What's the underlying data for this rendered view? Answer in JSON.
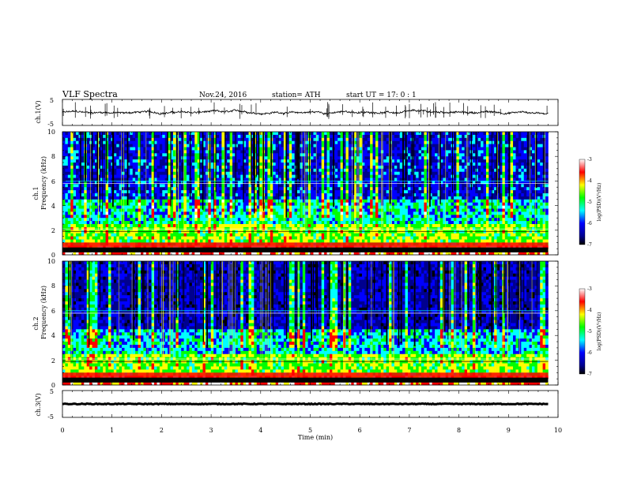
{
  "header": {
    "title": "VLF  Spectra",
    "date": "Nov.24, 2016",
    "station": "station= ATH",
    "start": "start  UT  =   17: 0   : 1"
  },
  "chart_data": [
    {
      "type": "line",
      "name": "ch1-timeseries",
      "ylabel": "ch.1(V)",
      "xlim": [
        0,
        10
      ],
      "ylim": [
        -5,
        5
      ],
      "yticks": [
        "5",
        "-5"
      ],
      "baseline": 0,
      "note_values": "noisy trace around 0 V with sporadic spikes"
    },
    {
      "type": "heatmap",
      "name": "ch1-spectrogram",
      "ylabel_top": "ch.1",
      "ylabel": "Frequency  (kHz)",
      "xlim": [
        0,
        10
      ],
      "ylim": [
        0,
        10
      ],
      "yticks": [
        "0",
        "2",
        "4",
        "6",
        "8",
        "10"
      ],
      "colorbar": {
        "label": "log(PSD)(V²/Hz)",
        "range": [
          -7,
          -3
        ],
        "ticks": [
          "-3",
          "-4",
          "-5",
          "-6",
          "-7"
        ]
      }
    },
    {
      "type": "heatmap",
      "name": "ch2-spectrogram",
      "ylabel_top": "ch.2",
      "ylabel": "Frequency  (kHz)",
      "xlim": [
        0,
        10
      ],
      "ylim": [
        0,
        10
      ],
      "yticks": [
        "0",
        "2",
        "4",
        "6",
        "8",
        "10"
      ],
      "colorbar": {
        "label": "log(PSD)(V²/Hz)",
        "range": [
          -7,
          -3
        ],
        "ticks": [
          "-3",
          "-4",
          "-5",
          "-6",
          "-7"
        ]
      }
    },
    {
      "type": "line",
      "name": "ch3-timeseries",
      "ylabel": "ch.3(V)",
      "xlim": [
        0,
        10
      ],
      "ylim": [
        -5,
        5
      ],
      "yticks": [
        "5",
        "-5"
      ],
      "baseline": 0
    }
  ],
  "xaxis": {
    "label": "Time  (min)",
    "ticks": [
      "0",
      "1",
      "2",
      "3",
      "4",
      "5",
      "6",
      "7",
      "8",
      "9",
      "10"
    ]
  },
  "colors": {
    "axis": "#000000",
    "colormap": [
      "#000000",
      "#00008f",
      "#0000ff",
      "#00ffff",
      "#00ff00",
      "#ffff00",
      "#ff0000",
      "#ffffff"
    ]
  }
}
